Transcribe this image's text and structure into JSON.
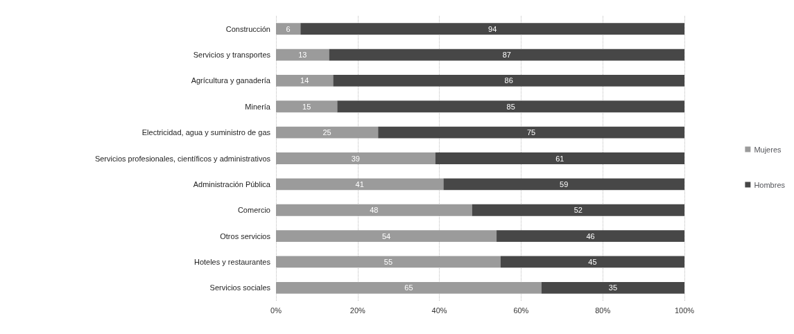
{
  "chart_data": {
    "type": "bar",
    "orientation": "horizontal",
    "stacked": true,
    "data_labels": true,
    "grid": "x",
    "legend": "right",
    "categories": [
      "Construcción",
      "Servicios y transportes",
      "Agrícultura y ganadería",
      "Minería",
      "Electricidad, agua y suministro de gas",
      "Servicios profesionales, científicos y administrativos",
      "Administración Pública",
      "Comercio",
      "Otros servicios",
      "Hoteles y restaurantes",
      "Servicios sociales"
    ],
    "series": [
      {
        "name": "Mujeres",
        "color": "#9b9b9b",
        "values": [
          6,
          13,
          14,
          15,
          25,
          39,
          41,
          48,
          54,
          55,
          65
        ]
      },
      {
        "name": "Hombres",
        "color": "#474747",
        "values": [
          94,
          87,
          86,
          85,
          75,
          61,
          59,
          52,
          46,
          45,
          35
        ]
      }
    ],
    "xlim": [
      0,
      100
    ],
    "xticks": [
      {
        "value": 0,
        "label": "0%"
      },
      {
        "value": 20,
        "label": "20%"
      },
      {
        "value": 40,
        "label": "40%"
      },
      {
        "value": 60,
        "label": "60%"
      },
      {
        "value": 80,
        "label": "80%"
      },
      {
        "value": 100,
        "label": "100%"
      }
    ]
  }
}
